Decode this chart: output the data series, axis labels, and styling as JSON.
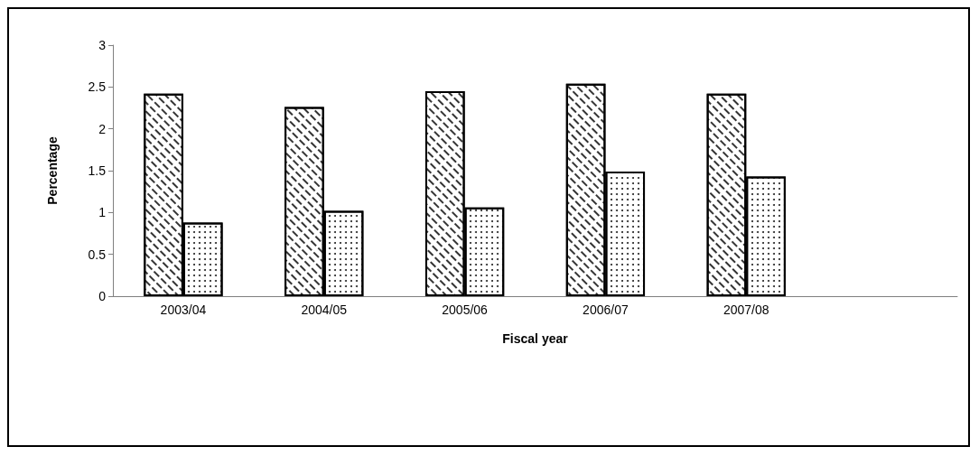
{
  "chart_data": {
    "type": "bar",
    "xlabel": "Fiscal year",
    "ylabel": "Percentage",
    "categories": [
      "2003/04",
      "2004/05",
      "2005/06",
      "2006/07",
      "2007/08",
      null
    ],
    "series": [
      {
        "color": "#ffffff",
        "values": [
          2.42,
          2.26,
          2.45,
          2.54,
          2.42,
          null
        ]
      },
      {
        "color": "#ffffff",
        "values": [
          0.88,
          1.02,
          1.06,
          1.49,
          1.43,
          null
        ]
      }
    ],
    "ylim": [
      0,
      3
    ],
    "yticks": [
      0,
      0.5,
      1,
      1.5,
      2,
      2.5,
      3
    ],
    "grid": false
  }
}
